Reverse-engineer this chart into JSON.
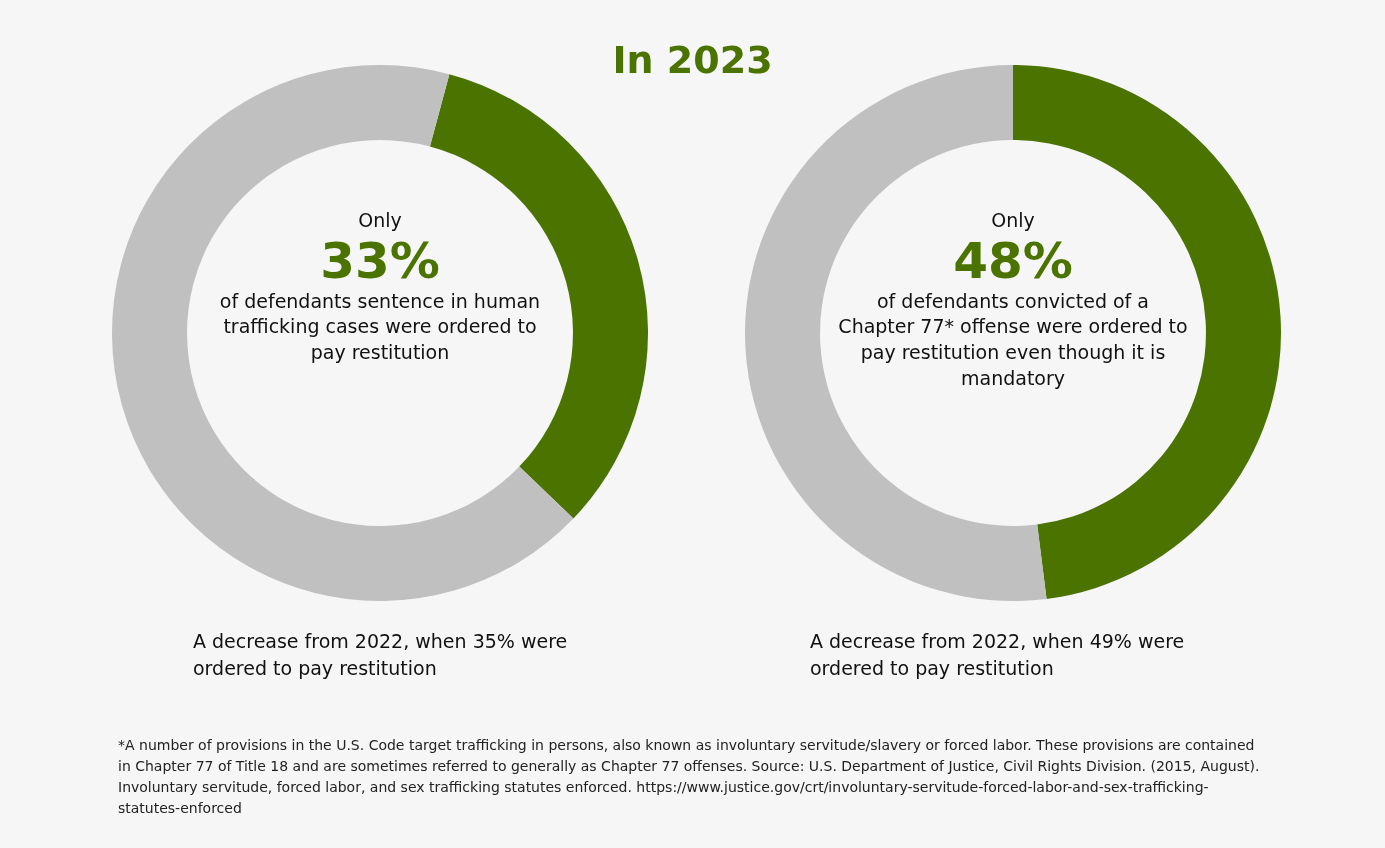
{
  "chart_data": [
    {
      "type": "donut",
      "categories": [
        null,
        null
      ],
      "values": [
        33,
        67
      ],
      "colors": [
        "#4a7300",
        "#c0c0c0"
      ],
      "annotations": [
        "Only",
        "33%",
        "of defendants sentence in human trafficking cases were ordered to pay restitution",
        "A decrease from 2022, when 35% were ordered to pay restitution"
      ]
    },
    {
      "type": "donut",
      "categories": [
        null,
        null
      ],
      "values": [
        48,
        52
      ],
      "colors": [
        "#4a7300",
        "#c0c0c0"
      ],
      "annotations": [
        "Only",
        "48%",
        "of defendants convicted of a Chapter 77* offense were ordered to pay restitution even though it is mandatory",
        "A decrease from 2022, when 49% were ordered to pay restitution"
      ]
    },
    {
      "type": "other",
      "title": "In 2023",
      "annotations": [
        "*A number of provisions in the U.S. Code target trafficking in persons, also known as involuntary servitude/slavery or forced labor. These provisions are contained in Chapter 77 of Title 18 and are sometimes referred to generally as Chapter 77 offenses. Source: U.S. Department of Justice, Civil Rights Division. (2015, August). Involuntary servitude, forced labor, and sex trafficking statutes enforced. https://www.justice.gov/crt/involuntary-servitude-forced-labor-and-sex-trafficking-statutes-enforced"
      ]
    }
  ]
}
